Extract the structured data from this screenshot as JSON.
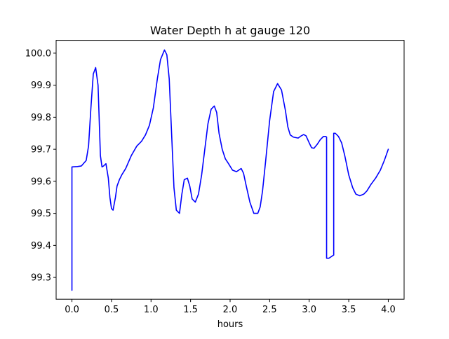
{
  "chart_data": {
    "type": "line",
    "title": "Water Depth h at gauge 120",
    "xlabel": "hours",
    "ylabel": "",
    "xlim": [
      -0.2,
      4.2
    ],
    "ylim": [
      99.232,
      100.04
    ],
    "grid": false,
    "legend": "none",
    "x_ticks": [
      0.0,
      0.5,
      1.0,
      1.5,
      2.0,
      2.5,
      3.0,
      3.5,
      4.0
    ],
    "x_tick_labels": [
      "0.0",
      "0.5",
      "1.0",
      "1.5",
      "2.0",
      "2.5",
      "3.0",
      "3.5",
      "4.0"
    ],
    "y_ticks": [
      99.3,
      99.4,
      99.5,
      99.6,
      99.7,
      99.8,
      99.9,
      100.0
    ],
    "y_tick_labels": [
      "99.3",
      "99.4",
      "99.5",
      "99.6",
      "99.7",
      "99.8",
      "99.9",
      "100.0"
    ],
    "series": [
      {
        "color": "#0000ff",
        "x": [
          0.0,
          0.0,
          0.07,
          0.12,
          0.18,
          0.21,
          0.24,
          0.27,
          0.3,
          0.33,
          0.36,
          0.38,
          0.4,
          0.43,
          0.46,
          0.48,
          0.5,
          0.52,
          0.55,
          0.57,
          0.6,
          0.63,
          0.68,
          0.75,
          0.82,
          0.88,
          0.93,
          0.98,
          1.03,
          1.08,
          1.12,
          1.17,
          1.2,
          1.23,
          1.26,
          1.29,
          1.32,
          1.36,
          1.39,
          1.42,
          1.46,
          1.49,
          1.52,
          1.56,
          1.6,
          1.64,
          1.68,
          1.72,
          1.76,
          1.8,
          1.83,
          1.86,
          1.9,
          1.94,
          1.98,
          2.03,
          2.08,
          2.11,
          2.14,
          2.17,
          2.2,
          2.25,
          2.3,
          2.35,
          2.38,
          2.41,
          2.45,
          2.5,
          2.55,
          2.6,
          2.65,
          2.7,
          2.73,
          2.76,
          2.8,
          2.86,
          2.9,
          2.93,
          2.96,
          3.0,
          3.03,
          3.06,
          3.1,
          3.14,
          3.18,
          3.21,
          3.22,
          3.22,
          3.25,
          3.28,
          3.31,
          3.31,
          3.33,
          3.37,
          3.41,
          3.45,
          3.5,
          3.55,
          3.59,
          3.64,
          3.69,
          3.73,
          3.78,
          3.84,
          3.9,
          3.95,
          4.0
        ],
        "y": [
          99.26,
          99.645,
          99.646,
          99.648,
          99.665,
          99.71,
          99.83,
          99.935,
          99.955,
          99.9,
          99.68,
          99.645,
          99.648,
          99.655,
          99.61,
          99.55,
          99.515,
          99.51,
          99.55,
          99.585,
          99.605,
          99.62,
          99.64,
          99.68,
          99.71,
          99.725,
          99.745,
          99.775,
          99.83,
          99.92,
          99.98,
          100.01,
          99.995,
          99.92,
          99.75,
          99.58,
          99.51,
          99.5,
          99.56,
          99.605,
          99.61,
          99.585,
          99.545,
          99.535,
          99.56,
          99.62,
          99.7,
          99.78,
          99.825,
          99.835,
          99.815,
          99.75,
          99.7,
          99.67,
          99.655,
          99.635,
          99.63,
          99.635,
          99.64,
          99.625,
          99.59,
          99.535,
          99.5,
          99.5,
          99.52,
          99.57,
          99.665,
          99.79,
          99.88,
          99.905,
          99.885,
          99.82,
          99.77,
          99.745,
          99.738,
          99.735,
          99.742,
          99.746,
          99.742,
          99.72,
          99.705,
          99.703,
          99.715,
          99.73,
          99.74,
          99.74,
          99.738,
          99.36,
          99.36,
          99.365,
          99.37,
          99.75,
          99.75,
          99.74,
          99.72,
          99.68,
          99.62,
          99.58,
          99.56,
          99.555,
          99.56,
          99.57,
          99.59,
          99.61,
          99.635,
          99.665,
          99.7
        ]
      }
    ]
  }
}
